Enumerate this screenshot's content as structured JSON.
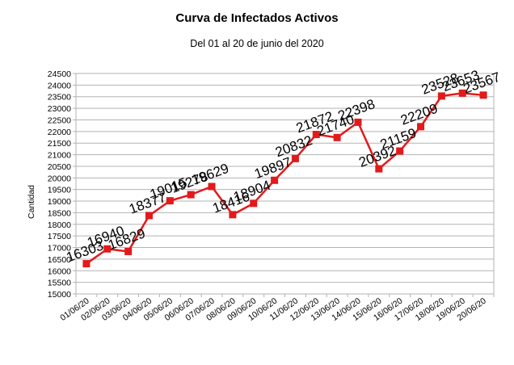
{
  "chart_data": {
    "type": "line",
    "title": "Curva de Infectados Activos",
    "subtitle": "Del 01 al 20 de junio del 2020",
    "xlabel": "",
    "ylabel": "Cantidad",
    "categories": [
      "01/06/20",
      "02/06/20",
      "03/06/20",
      "04/06/20",
      "05/06/20",
      "06/06/20",
      "07/06/20",
      "08/06/20",
      "09/06/20",
      "10/06/20",
      "11/06/20",
      "12/06/20",
      "13/06/20",
      "14/06/20",
      "15/06/20",
      "16/06/20",
      "17/06/20",
      "18/06/20",
      "19/06/20",
      "20/06/20"
    ],
    "series": [
      {
        "values": [
          16303,
          16940,
          16829,
          18377,
          19015,
          19278,
          19629,
          18416,
          18904,
          19897,
          20832,
          21872,
          21740,
          22398,
          20392,
          21159,
          22209,
          23528,
          23653,
          23567
        ],
        "color": "#e31a1c"
      }
    ],
    "ylim": [
      15000,
      24500
    ],
    "y_ticks": [
      15000,
      15500,
      16000,
      16500,
      17000,
      17500,
      18000,
      18500,
      19000,
      19500,
      20000,
      20500,
      21000,
      21500,
      22000,
      22500,
      23000,
      23500,
      24000,
      24500
    ],
    "grid": "horizontal",
    "legend": "none",
    "marker": "square"
  }
}
